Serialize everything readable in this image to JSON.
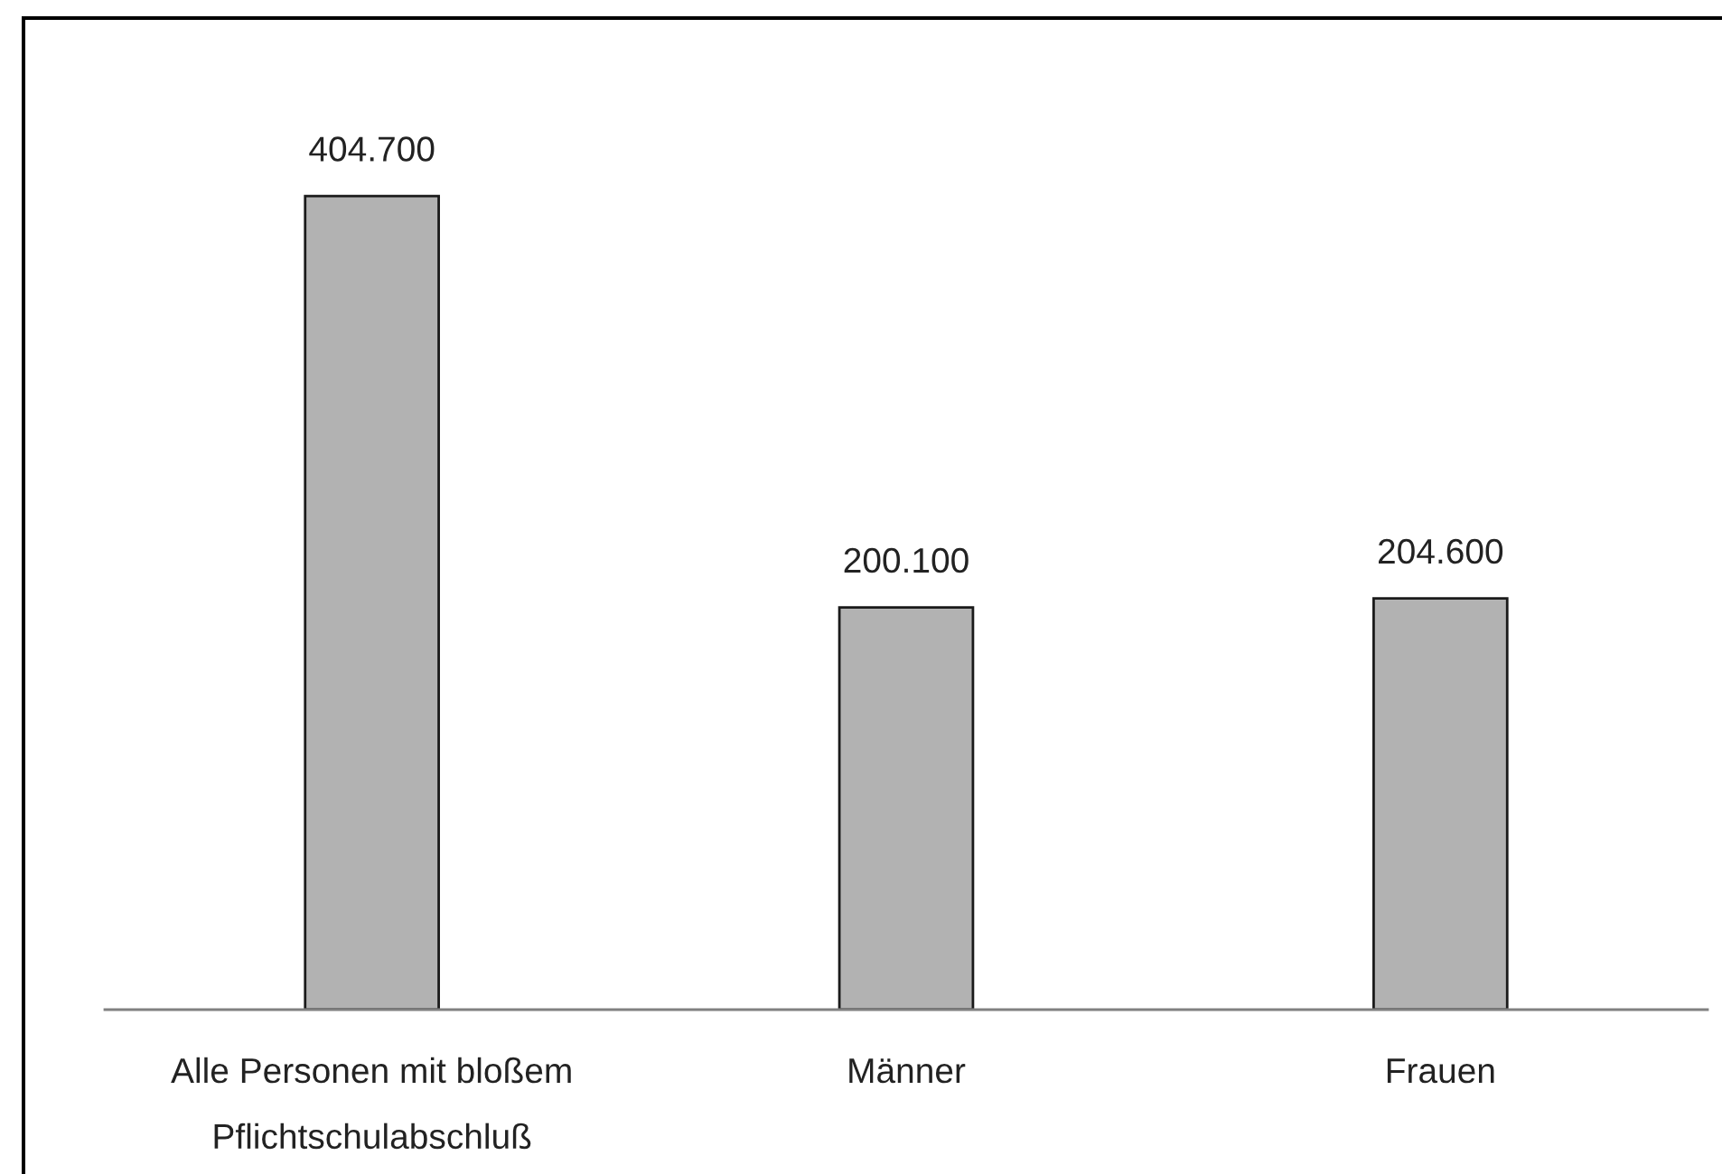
{
  "chart_data": {
    "type": "bar",
    "categories": [
      "Alle Personen mit bloßem\nPflichtschulabschluß",
      "Männer",
      "Frauen"
    ],
    "values": [
      404700,
      200100,
      204600
    ],
    "value_labels": [
      "404.700",
      "200.100",
      "204.600"
    ],
    "color": "#b2b2b2",
    "tick_labels": "x"
  }
}
